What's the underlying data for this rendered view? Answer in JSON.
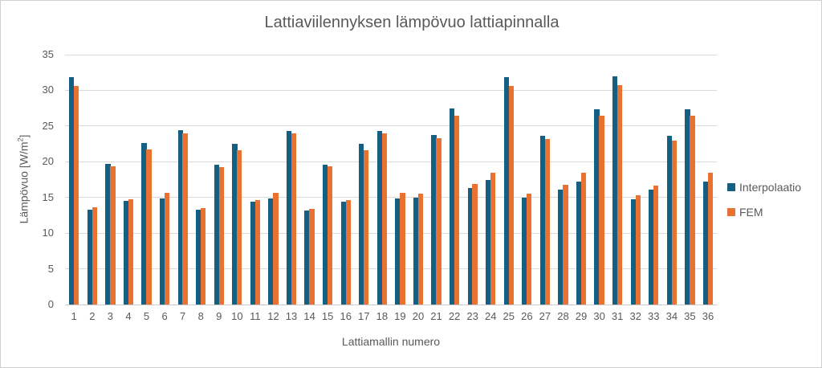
{
  "chart_data": {
    "type": "bar",
    "title": "Lattiaviilennyksen lämpövuo lattiapinnalla",
    "xlabel": "Lattiamallin numero",
    "ylabel": "Lämpövuo [W/m²]",
    "ylim": [
      0,
      35
    ],
    "ytick_step": 5,
    "grid": true,
    "legend_position": "right",
    "categories": [
      "1",
      "2",
      "3",
      "4",
      "5",
      "6",
      "7",
      "8",
      "9",
      "10",
      "11",
      "12",
      "13",
      "14",
      "15",
      "16",
      "17",
      "18",
      "19",
      "20",
      "21",
      "22",
      "23",
      "24",
      "25",
      "26",
      "27",
      "28",
      "29",
      "30",
      "31",
      "32",
      "33",
      "34",
      "35",
      "36"
    ],
    "series": [
      {
        "name": "Interpolaatio",
        "color": "#156082",
        "values": [
          31.9,
          13.3,
          19.7,
          14.5,
          22.6,
          14.9,
          24.4,
          13.3,
          19.6,
          22.5,
          14.4,
          14.9,
          24.3,
          13.2,
          19.6,
          14.4,
          22.5,
          24.3,
          14.9,
          15.0,
          23.7,
          27.5,
          16.3,
          17.4,
          31.9,
          15.0,
          23.6,
          16.1,
          17.2,
          27.3,
          32.0,
          14.8,
          16.1,
          23.6,
          27.3,
          17.2
        ]
      },
      {
        "name": "FEM",
        "color": "#E97132",
        "values": [
          30.6,
          13.6,
          19.4,
          14.7,
          21.7,
          15.6,
          24.0,
          13.5,
          19.3,
          21.6,
          14.6,
          15.6,
          24.0,
          13.4,
          19.4,
          14.6,
          21.6,
          24.0,
          15.6,
          15.5,
          23.3,
          26.5,
          16.9,
          18.5,
          30.6,
          15.5,
          23.2,
          16.8,
          18.5,
          26.4,
          30.7,
          15.3,
          16.7,
          23.0,
          26.4,
          18.5
        ]
      }
    ]
  }
}
